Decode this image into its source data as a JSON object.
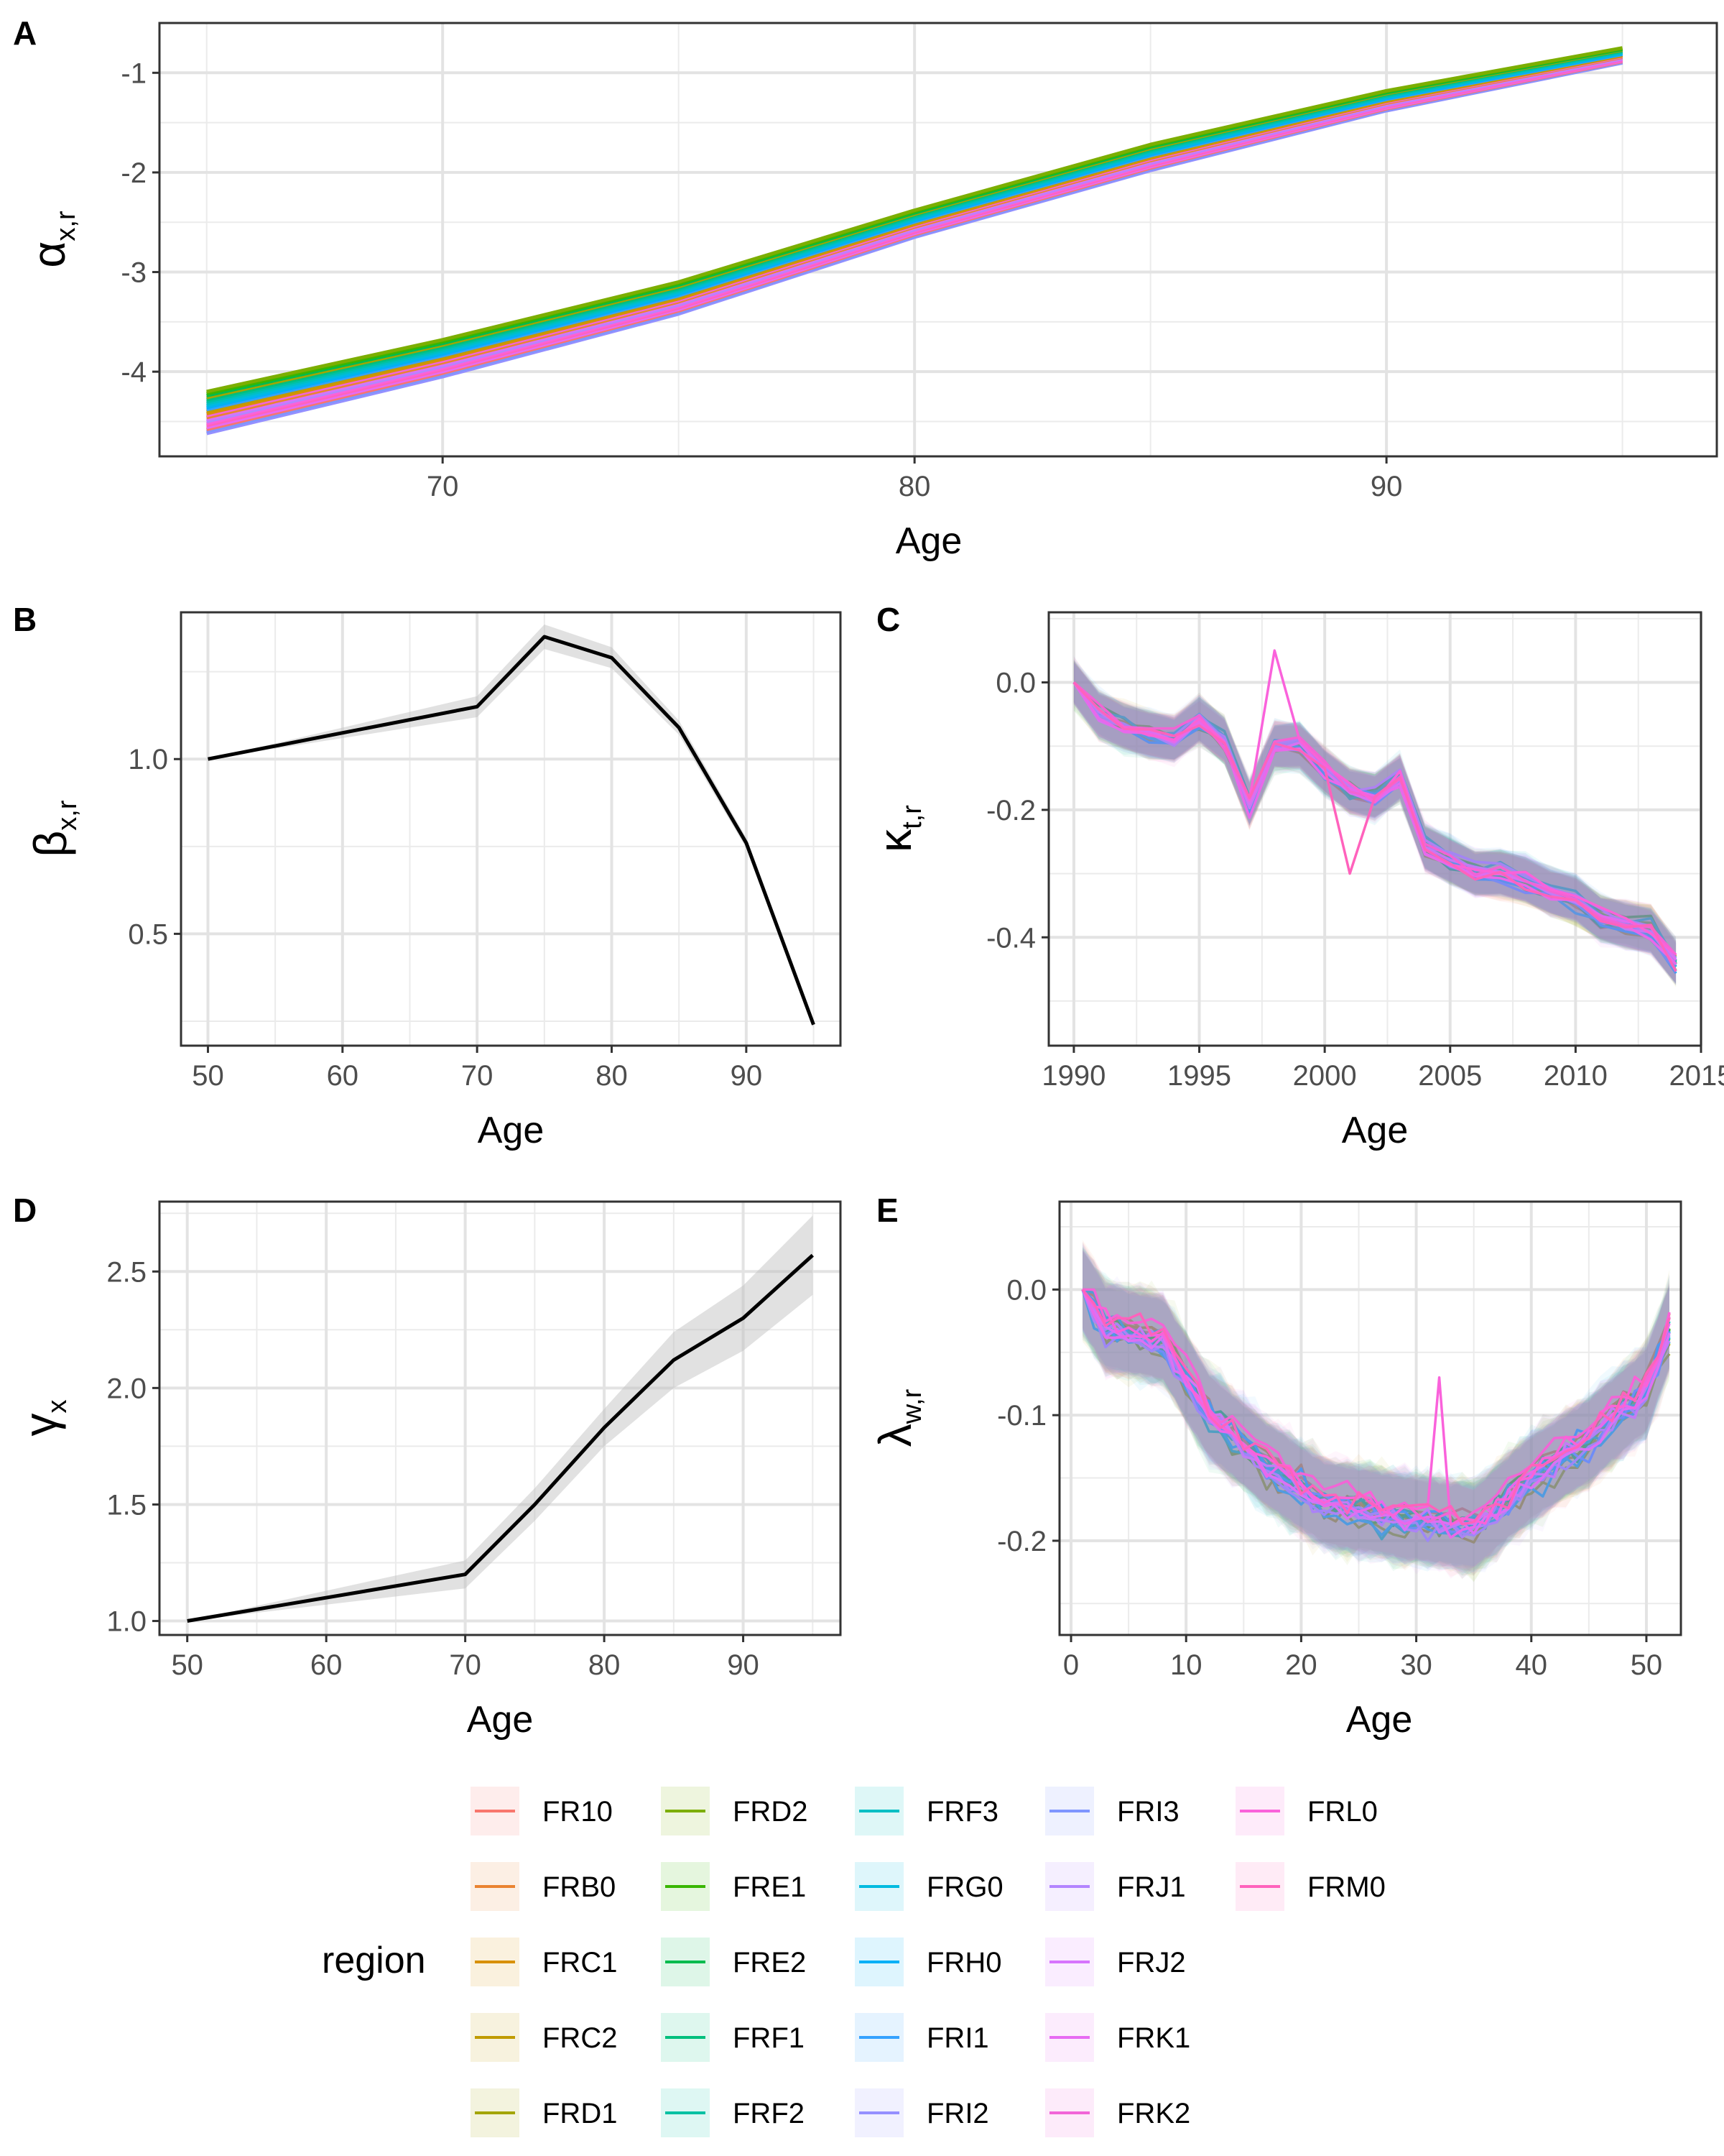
{
  "legend": {
    "title": "region",
    "regions": [
      {
        "name": "FR10",
        "color": "#F8766D"
      },
      {
        "name": "FRB0",
        "color": "#EA8331"
      },
      {
        "name": "FRC1",
        "color": "#D89000"
      },
      {
        "name": "FRC2",
        "color": "#C09B00"
      },
      {
        "name": "FRD1",
        "color": "#A3A500"
      },
      {
        "name": "FRD2",
        "color": "#7CAE00"
      },
      {
        "name": "FRE1",
        "color": "#39B600"
      },
      {
        "name": "FRE2",
        "color": "#00BB4E"
      },
      {
        "name": "FRF1",
        "color": "#00BF7D"
      },
      {
        "name": "FRF2",
        "color": "#00C1A3"
      },
      {
        "name": "FRF3",
        "color": "#00BFC4"
      },
      {
        "name": "FRG0",
        "color": "#00BAE0"
      },
      {
        "name": "FRH0",
        "color": "#00B0F6"
      },
      {
        "name": "FRI1",
        "color": "#35A2FF"
      },
      {
        "name": "FRI2",
        "color": "#9590FF"
      },
      {
        "name": "FRI3",
        "color": "#7F96FF"
      },
      {
        "name": "FRJ1",
        "color": "#B385FF"
      },
      {
        "name": "FRJ2",
        "color": "#D774FD"
      },
      {
        "name": "FRK1",
        "color": "#E76BF3"
      },
      {
        "name": "FRK2",
        "color": "#F265D8"
      },
      {
        "name": "FRL0",
        "color": "#FA62DB"
      },
      {
        "name": "FRM0",
        "color": "#FF62BC"
      }
    ]
  },
  "panels": {
    "A": {
      "tag": "A",
      "xlabel": "Age",
      "ylabel_sym": "α",
      "ylabel_sub": "x,r"
    },
    "B": {
      "tag": "B",
      "xlabel": "Age",
      "ylabel_sym": "β",
      "ylabel_sub": "x,r"
    },
    "C": {
      "tag": "C",
      "xlabel": "Age",
      "ylabel_sym": "κ",
      "ylabel_sub": "t,r"
    },
    "D": {
      "tag": "D",
      "xlabel": "Age",
      "ylabel_sym": "γ",
      "ylabel_sub": "x"
    },
    "E": {
      "tag": "E",
      "xlabel": "Age",
      "ylabel_sym": "λ",
      "ylabel_sub": "w,r"
    }
  },
  "chart_data": [
    {
      "id": "A",
      "type": "line",
      "title": "",
      "xlabel": "Age",
      "ylabel": "α x,r",
      "xlim": [
        64,
        97
      ],
      "ylim": [
        -4.85,
        -0.5
      ],
      "xticks": [
        70,
        80,
        90
      ],
      "yticks": [
        -1,
        -2,
        -3,
        -4
      ],
      "x": [
        65,
        70,
        75,
        80,
        85,
        90,
        95
      ],
      "series_spread": {
        "range_min": [
          -4.62,
          -4.05,
          -3.42,
          -2.65,
          -1.98,
          -1.38,
          -0.9
        ],
        "range_max": [
          -4.2,
          -3.68,
          -3.1,
          -2.38,
          -1.72,
          -1.18,
          -0.75
        ]
      },
      "series": "one line per region (22), spread between range_min and range_max"
    },
    {
      "id": "B",
      "type": "line",
      "title": "",
      "xlabel": "Age",
      "ylabel": "β x,r",
      "xlim": [
        48,
        97
      ],
      "ylim": [
        0.18,
        1.42
      ],
      "xticks": [
        50,
        60,
        70,
        80,
        90
      ],
      "yticks": [
        0.5,
        1.0
      ],
      "x": [
        50,
        70,
        75,
        80,
        85,
        90,
        95
      ],
      "y": [
        1.0,
        1.15,
        1.35,
        1.29,
        1.09,
        0.76,
        0.24
      ],
      "band_halfwidth": [
        0.0,
        0.03,
        0.035,
        0.03,
        0.02,
        0.015,
        0.01
      ]
    },
    {
      "id": "C",
      "type": "line",
      "title": "",
      "xlabel": "Age",
      "ylabel": "κ t,r",
      "xlim": [
        1989,
        2015
      ],
      "ylim": [
        -0.57,
        0.11
      ],
      "xticks": [
        1990,
        1995,
        2000,
        2005,
        2010,
        2015
      ],
      "yticks": [
        0.0,
        -0.2,
        -0.4
      ],
      "x": [
        1990,
        1991,
        1992,
        1993,
        1994,
        1995,
        1996,
        1997,
        1998,
        1999,
        2000,
        2001,
        2002,
        2003,
        2004,
        2005,
        2006,
        2007,
        2008,
        2009,
        2010,
        2011,
        2012,
        2013,
        2014
      ],
      "mean": [
        0.0,
        -0.05,
        -0.07,
        -0.08,
        -0.09,
        -0.06,
        -0.09,
        -0.19,
        -0.1,
        -0.1,
        -0.14,
        -0.17,
        -0.18,
        -0.15,
        -0.26,
        -0.28,
        -0.3,
        -0.3,
        -0.31,
        -0.33,
        -0.34,
        -0.37,
        -0.38,
        -0.39,
        -0.44
      ],
      "series": "one noisy line per region (22) scattered around mean"
    },
    {
      "id": "D",
      "type": "line",
      "title": "",
      "xlabel": "Age",
      "ylabel": "γ x",
      "xlim": [
        48,
        97
      ],
      "ylim": [
        0.94,
        2.8
      ],
      "xticks": [
        50,
        60,
        70,
        80,
        90
      ],
      "yticks": [
        1.0,
        1.5,
        2.0,
        2.5
      ],
      "x": [
        50,
        70,
        75,
        80,
        85,
        90,
        95
      ],
      "y": [
        1.0,
        1.2,
        1.5,
        1.83,
        2.12,
        2.3,
        2.57
      ],
      "band_halfwidth": [
        0.0,
        0.06,
        0.07,
        0.08,
        0.12,
        0.14,
        0.17
      ]
    },
    {
      "id": "E",
      "type": "line",
      "title": "",
      "xlabel": "Age",
      "ylabel": "λ w,r",
      "xlim": [
        -1,
        53
      ],
      "ylim": [
        -0.275,
        0.07
      ],
      "xticks": [
        0,
        10,
        20,
        30,
        40,
        50
      ],
      "yticks": [
        0.0,
        -0.1,
        -0.2
      ],
      "x_range": [
        1,
        52
      ],
      "mean_knots": {
        "x": [
          1,
          3,
          8,
          12,
          17,
          22,
          28,
          35,
          40,
          45,
          50,
          52
        ],
        "y": [
          0.0,
          -0.03,
          -0.04,
          -0.1,
          -0.14,
          -0.17,
          -0.18,
          -0.19,
          -0.15,
          -0.12,
          -0.08,
          -0.03
        ]
      },
      "series": "one noisy line per region (22) scattered around mean"
    }
  ]
}
